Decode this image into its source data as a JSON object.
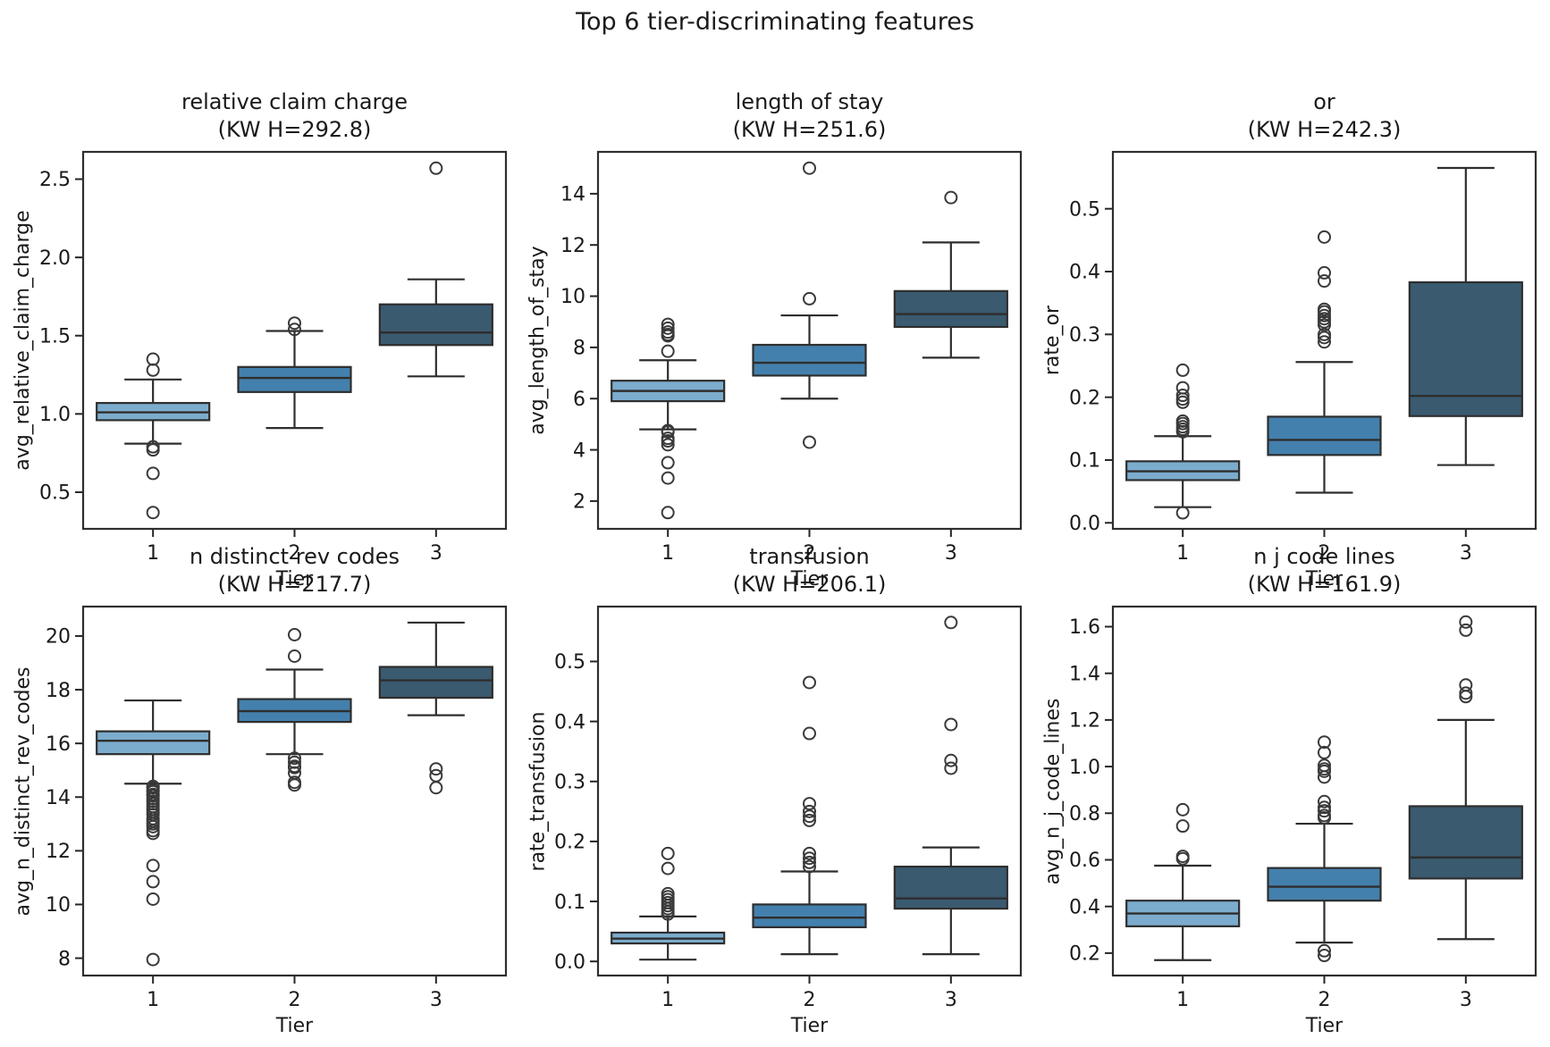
{
  "figure": {
    "title": "Top 6 tier-discriminating features"
  },
  "colors": {
    "tier1_fill": "#7CACCD",
    "tier2_fill": "#4480AD",
    "tier3_fill": "#3A5A70",
    "box_edge": "#2E2E2E",
    "outlier_edge": "#3A3A3A",
    "text": "#1A1A1A"
  },
  "chart_data": [
    {
      "type": "box",
      "title": "relative claim charge",
      "kw_label": "(KW H=292.8)",
      "xlabel": "Tier",
      "ylabel": "avg_relative_claim_charge",
      "categories": [
        "1",
        "2",
        "3"
      ],
      "yticks": [
        "0.5",
        "1.0",
        "1.5",
        "2.0",
        "2.5"
      ],
      "ylim": [
        0.26,
        2.68
      ],
      "series": [
        {
          "tier": "1",
          "whislo": 0.81,
          "q1": 0.96,
          "med": 1.01,
          "q3": 1.07,
          "whishi": 1.22,
          "outliers": [
            1.35,
            1.28,
            0.79,
            0.77,
            0.62,
            0.37
          ]
        },
        {
          "tier": "2",
          "whislo": 0.91,
          "q1": 1.14,
          "med": 1.23,
          "q3": 1.3,
          "whishi": 1.53,
          "outliers": [
            1.58,
            1.54
          ]
        },
        {
          "tier": "3",
          "whislo": 1.24,
          "q1": 1.44,
          "med": 1.52,
          "q3": 1.7,
          "whishi": 1.86,
          "outliers": [
            2.57
          ]
        }
      ]
    },
    {
      "type": "box",
      "title": "length of stay",
      "kw_label": "(KW H=251.6)",
      "xlabel": "Tier",
      "ylabel": "avg_length_of_stay",
      "categories": [
        "1",
        "2",
        "3"
      ],
      "yticks": [
        "2",
        "4",
        "6",
        "8",
        "10",
        "12",
        "14"
      ],
      "ylim": [
        0.88,
        15.67
      ],
      "series": [
        {
          "tier": "1",
          "whislo": 4.8,
          "q1": 5.9,
          "med": 6.3,
          "q3": 6.7,
          "whishi": 7.5,
          "outliers": [
            8.9,
            8.75,
            8.6,
            8.5,
            8.45,
            7.85,
            4.75,
            4.7,
            4.45,
            4.35,
            4.2,
            3.5,
            2.9,
            1.55
          ]
        },
        {
          "tier": "2",
          "whislo": 6.0,
          "q1": 6.9,
          "med": 7.4,
          "q3": 8.1,
          "whishi": 9.25,
          "outliers": [
            15.0,
            9.9,
            4.3
          ]
        },
        {
          "tier": "3",
          "whislo": 7.6,
          "q1": 8.8,
          "med": 9.3,
          "q3": 10.2,
          "whishi": 12.1,
          "outliers": [
            13.85
          ]
        }
      ]
    },
    {
      "type": "box",
      "title": "or",
      "kw_label": "(KW H=242.3)",
      "xlabel": "Tier",
      "ylabel": "rate_or",
      "categories": [
        "1",
        "2",
        "3"
      ],
      "yticks": [
        "0.0",
        "0.1",
        "0.2",
        "0.3",
        "0.4",
        "0.5"
      ],
      "ylim": [
        -0.011,
        0.592
      ],
      "series": [
        {
          "tier": "1",
          "whislo": 0.025,
          "q1": 0.068,
          "med": 0.082,
          "q3": 0.098,
          "whishi": 0.138,
          "outliers": [
            0.243,
            0.215,
            0.203,
            0.197,
            0.192,
            0.162,
            0.158,
            0.153,
            0.149,
            0.145,
            0.016
          ]
        },
        {
          "tier": "2",
          "whislo": 0.048,
          "q1": 0.108,
          "med": 0.132,
          "q3": 0.169,
          "whishi": 0.256,
          "outliers": [
            0.455,
            0.398,
            0.385,
            0.34,
            0.336,
            0.33,
            0.325,
            0.32,
            0.315,
            0.3,
            0.295,
            0.288
          ]
        },
        {
          "tier": "3",
          "whislo": 0.092,
          "q1": 0.17,
          "med": 0.202,
          "q3": 0.383,
          "whishi": 0.565,
          "outliers": []
        }
      ]
    },
    {
      "type": "box",
      "title": "n distinct rev codes",
      "kw_label": "(KW H=217.7)",
      "xlabel": "Tier",
      "ylabel": "avg_n_distinct_rev_codes",
      "categories": [
        "1",
        "2",
        "3"
      ],
      "yticks": [
        "8",
        "10",
        "12",
        "14",
        "16",
        "18",
        "20"
      ],
      "ylim": [
        7.32,
        21.13
      ],
      "series": [
        {
          "tier": "1",
          "whislo": 14.5,
          "q1": 15.6,
          "med": 16.1,
          "q3": 16.45,
          "whishi": 17.6,
          "outliers": [
            14.4,
            14.35,
            14.25,
            14.2,
            14.1,
            14.05,
            13.95,
            13.85,
            13.75,
            13.65,
            13.55,
            13.45,
            13.35,
            13.2,
            13.1,
            13.0,
            12.9,
            12.75,
            12.65,
            11.45,
            10.85,
            10.2,
            7.95
          ]
        },
        {
          "tier": "2",
          "whislo": 15.6,
          "q1": 16.8,
          "med": 17.2,
          "q3": 17.65,
          "whishi": 18.75,
          "outliers": [
            20.05,
            19.25,
            15.45,
            15.3,
            15.15,
            15.1,
            14.9,
            14.55,
            14.45
          ]
        },
        {
          "tier": "3",
          "whislo": 17.05,
          "q1": 17.7,
          "med": 18.35,
          "q3": 18.85,
          "whishi": 20.5,
          "outliers": [
            15.05,
            14.8,
            14.35
          ]
        }
      ]
    },
    {
      "type": "box",
      "title": "transfusion",
      "kw_label": "(KW H=206.1)",
      "xlabel": "Tier",
      "ylabel": "rate_transfusion",
      "categories": [
        "1",
        "2",
        "3"
      ],
      "yticks": [
        "0.0",
        "0.1",
        "0.2",
        "0.3",
        "0.4",
        "0.5"
      ],
      "ylim": [
        -0.025,
        0.593
      ],
      "series": [
        {
          "tier": "1",
          "whislo": 0.003,
          "q1": 0.03,
          "med": 0.038,
          "q3": 0.048,
          "whishi": 0.075,
          "outliers": [
            0.18,
            0.155,
            0.113,
            0.108,
            0.103,
            0.098,
            0.093,
            0.088,
            0.083,
            0.079
          ]
        },
        {
          "tier": "2",
          "whislo": 0.012,
          "q1": 0.057,
          "med": 0.073,
          "q3": 0.095,
          "whishi": 0.15,
          "outliers": [
            0.465,
            0.38,
            0.263,
            0.25,
            0.242,
            0.235,
            0.18,
            0.172,
            0.165,
            0.158
          ]
        },
        {
          "tier": "3",
          "whislo": 0.012,
          "q1": 0.088,
          "med": 0.105,
          "q3": 0.158,
          "whishi": 0.19,
          "outliers": [
            0.565,
            0.395,
            0.335,
            0.322
          ]
        }
      ]
    },
    {
      "type": "box",
      "title": "n j code lines",
      "kw_label": "(KW H=161.9)",
      "xlabel": "Tier",
      "ylabel": "avg_n_j_code_lines",
      "categories": [
        "1",
        "2",
        "3"
      ],
      "yticks": [
        "0.2",
        "0.4",
        "0.6",
        "0.8",
        "1.0",
        "1.2",
        "1.4",
        "1.6"
      ],
      "ylim": [
        0.1,
        1.69
      ],
      "series": [
        {
          "tier": "1",
          "whislo": 0.17,
          "q1": 0.315,
          "med": 0.37,
          "q3": 0.425,
          "whishi": 0.575,
          "outliers": [
            0.815,
            0.745,
            0.615,
            0.605
          ]
        },
        {
          "tier": "2",
          "whislo": 0.245,
          "q1": 0.425,
          "med": 0.485,
          "q3": 0.565,
          "whishi": 0.755,
          "outliers": [
            1.105,
            1.06,
            1.005,
            0.99,
            0.98,
            0.955,
            0.85,
            0.825,
            0.81,
            0.79,
            0.78,
            0.21,
            0.19
          ]
        },
        {
          "tier": "3",
          "whislo": 0.26,
          "q1": 0.52,
          "med": 0.61,
          "q3": 0.83,
          "whishi": 1.2,
          "outliers": [
            1.62,
            1.585,
            1.35,
            1.315,
            1.3
          ]
        }
      ]
    }
  ]
}
